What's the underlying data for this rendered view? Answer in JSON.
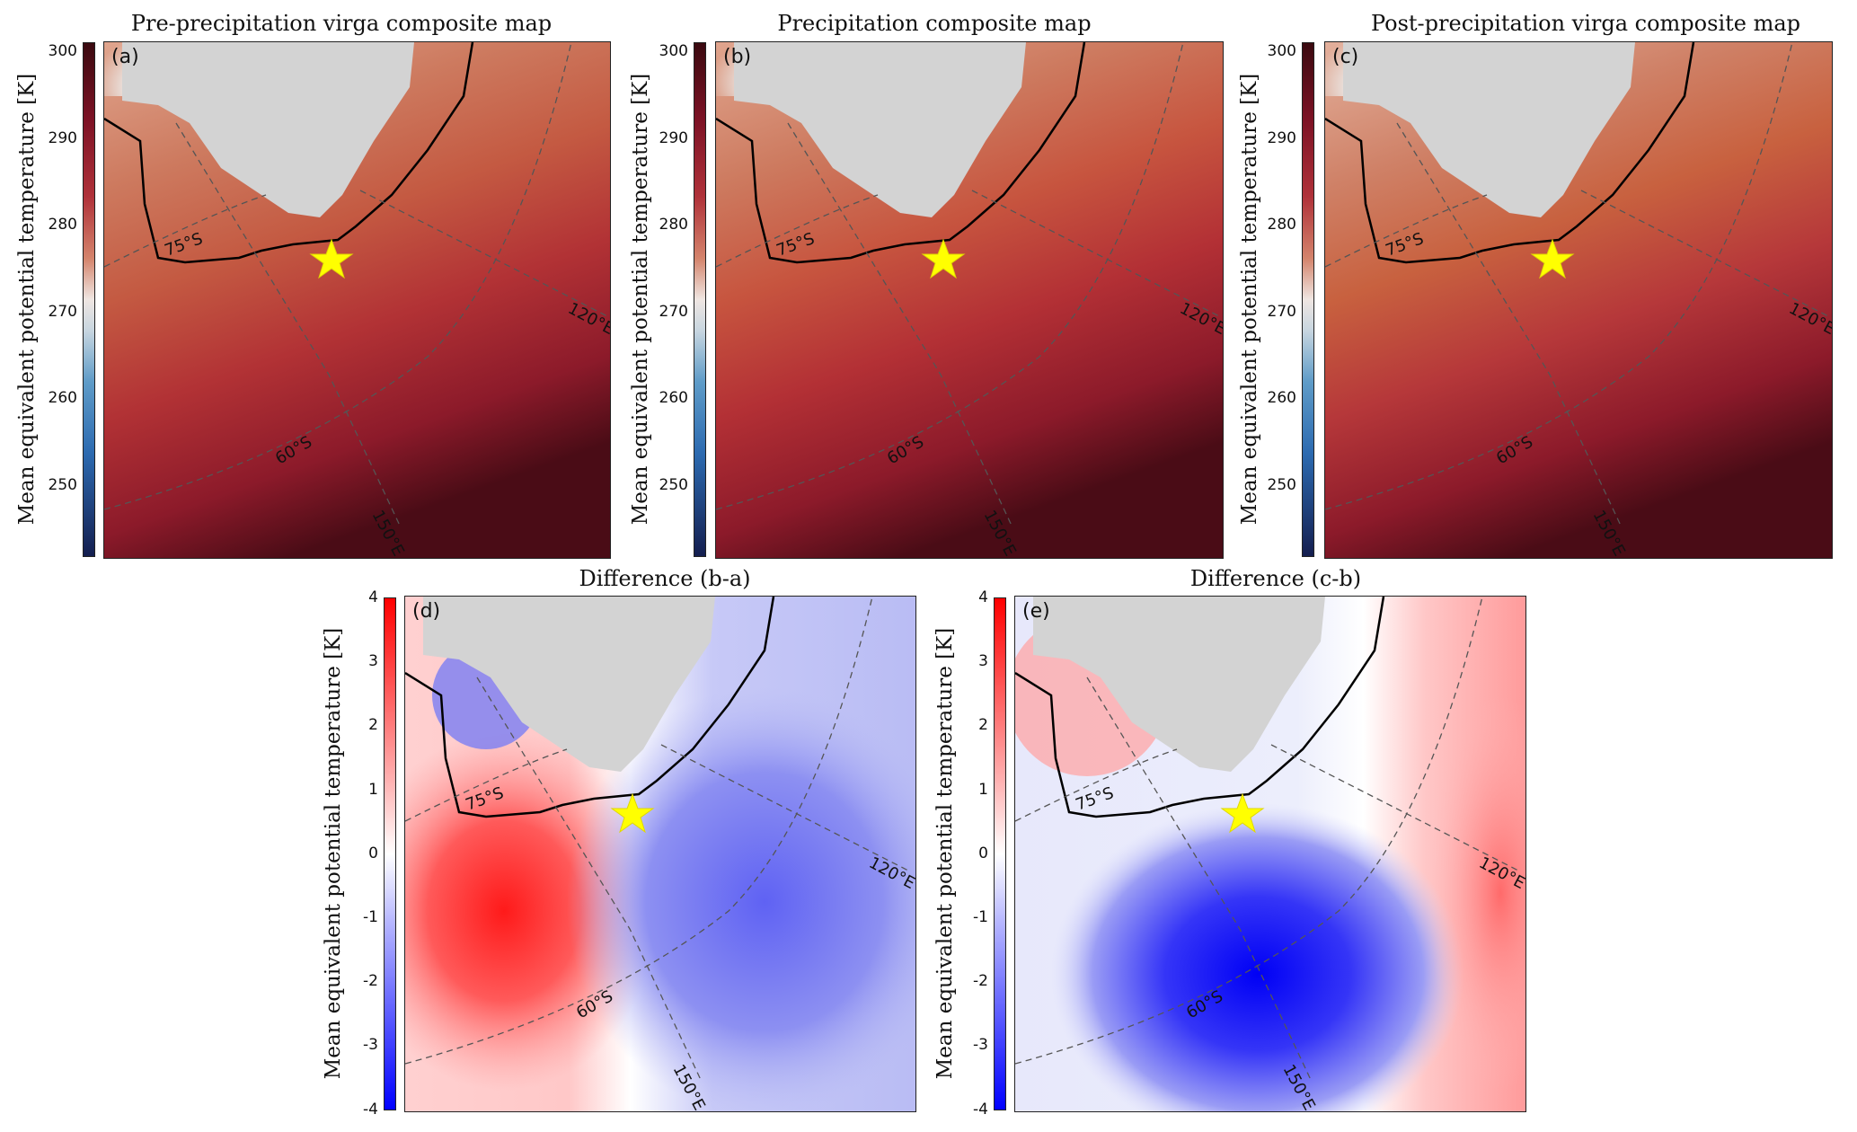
{
  "figure": {
    "colorbar_label": "Mean equivalent potential temperature [K]",
    "top_ticks": [
      "300",
      "290",
      "280",
      "270",
      "260",
      "250"
    ],
    "bottom_ticks": [
      "4",
      "3",
      "2",
      "1",
      "0",
      "-1",
      "-2",
      "-3",
      "-4"
    ],
    "grid_labels": {
      "lat75": "75°S",
      "lat60": "60°S",
      "lon120": "120°E",
      "lon150": "150°E"
    },
    "marker": "star-marker",
    "colors": {
      "land": "#d3d3d3",
      "coast": "#000000",
      "star": "#ffff00",
      "warm": "#c0463a",
      "cold": "#2a57b7"
    }
  },
  "panels": [
    {
      "id": "a",
      "label": "(a)",
      "title": "Pre-precipitation virga composite map",
      "kind": "theta"
    },
    {
      "id": "b",
      "label": "(b)",
      "title": "Precipitation composite map",
      "kind": "theta"
    },
    {
      "id": "c",
      "label": "(c)",
      "title": "Post-precipitation virga composite map",
      "kind": "theta"
    },
    {
      "id": "d",
      "label": "(d)",
      "title": "Difference (b-a)",
      "kind": "diff"
    },
    {
      "id": "e",
      "label": "(e)",
      "title": "Difference (c-b)",
      "kind": "diff"
    }
  ]
}
